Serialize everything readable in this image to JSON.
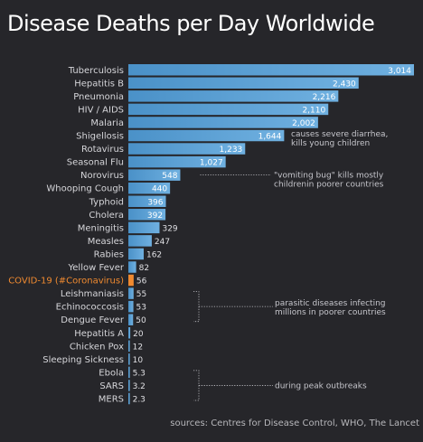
{
  "title": "Disease Deaths per Day Worldwide",
  "source": "sources: Centres for Disease Control, WHO, The Lancet",
  "colors": {
    "bar": "#4a91c8",
    "bar_light": "#6fb0e0",
    "highlight": "#f08a30",
    "background": "#26262a"
  },
  "chart_data": {
    "type": "bar",
    "orientation": "horizontal",
    "title": "Disease Deaths per Day Worldwide",
    "xlim": [
      0,
      3014
    ],
    "highlight": "COVID-19 (#Coronavirus)",
    "categories": [
      "Tuberculosis",
      "Hepatitis B",
      "Pneumonia",
      "HIV / AIDS",
      "Malaria",
      "Shigellosis",
      "Rotavirus",
      "Seasonal Flu",
      "Norovirus",
      "Whooping Cough",
      "Typhoid",
      "Cholera",
      "Meningitis",
      "Measles",
      "Rabies",
      "Yellow Fever",
      "COVID-19 (#Coronavirus)",
      "Leishmaniasis",
      "Echinococcosis",
      "Dengue Fever",
      "Hepatitis A",
      "Chicken Pox",
      "Sleeping Sickness",
      "Ebola",
      "SARS",
      "MERS"
    ],
    "values": [
      3014,
      2430,
      2216,
      2110,
      2002,
      1644,
      1233,
      1027,
      548,
      440,
      396,
      392,
      329,
      247,
      162,
      82,
      56,
      55,
      53,
      50,
      20,
      12,
      10,
      5.3,
      3.2,
      2.3
    ],
    "value_labels": [
      "3,014",
      "2,430",
      "2,216",
      "2,110",
      "2,002",
      "1,644",
      "1,233",
      "1,027",
      "548",
      "440",
      "396",
      "392",
      "329",
      "247",
      "162",
      "82",
      "56",
      "55",
      "53",
      "50",
      "20",
      "12",
      "10",
      "5.3",
      "3.2",
      "2.3"
    ],
    "annotations": [
      {
        "lines": [
          "causes severe diarrhea,",
          "kills young children"
        ]
      },
      {
        "lines": [
          "\"vomiting bug\" kills mostly",
          "childrenin poorer countries"
        ]
      },
      {
        "lines": [
          "parasitic diseases infecting",
          "millions in poorer countries"
        ]
      },
      {
        "lines": [
          "during peak outbreaks"
        ]
      }
    ]
  }
}
